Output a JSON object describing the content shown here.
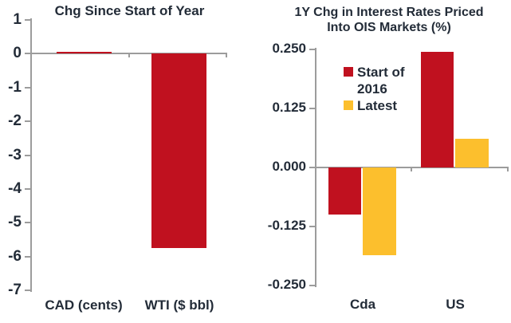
{
  "colors": {
    "red": "#C0111F",
    "gold": "#FCBF2D",
    "axis": "#9C9C9C",
    "text": "#232C38"
  },
  "chart_data": [
    {
      "type": "bar",
      "title": "Chg Since Start of Year",
      "categories": [
        "CAD (cents)",
        "WTI ($ bbl)"
      ],
      "values": [
        0.05,
        -5.75
      ],
      "bar_color": "#C0111F",
      "xlabel": "",
      "ylabel": "",
      "ylim": [
        -7,
        1
      ],
      "yticks": [
        {
          "label": "1",
          "v": 1
        },
        {
          "label": "0",
          "v": 0
        },
        {
          "label": "-1",
          "v": -1
        },
        {
          "label": "-2",
          "v": -2
        },
        {
          "label": "-3",
          "v": -3
        },
        {
          "label": "-4",
          "v": -4
        },
        {
          "label": "-5",
          "v": -5
        },
        {
          "label": "-6",
          "v": -6
        },
        {
          "label": "-7",
          "v": -7
        }
      ],
      "grid": false,
      "legend": null
    },
    {
      "type": "bar",
      "title": "1Y Chg in Interest Rates Priced Into OIS Markets (%)",
      "title_lines": [
        "1Y Chg in Interest Rates Priced",
        "Into OIS Markets (%)"
      ],
      "categories": [
        "Cda",
        "US"
      ],
      "series": [
        {
          "name": "Start of 2016",
          "color": "#C0111F",
          "values": [
            -0.1,
            0.245
          ]
        },
        {
          "name": "Latest",
          "color": "#FCBF2D",
          "values": [
            -0.185,
            0.06
          ]
        }
      ],
      "xlabel": "",
      "ylabel": "",
      "ylim": [
        -0.25,
        0.25
      ],
      "yticks": [
        {
          "label": "0.250",
          "v": 0.25
        },
        {
          "label": "0.125",
          "v": 0.125
        },
        {
          "label": "0.000",
          "v": 0
        },
        {
          "label": "-0.125",
          "v": -0.125
        },
        {
          "label": "-0.250",
          "v": -0.25
        }
      ],
      "grid": false,
      "legend_position": "upper-left-inside"
    }
  ]
}
